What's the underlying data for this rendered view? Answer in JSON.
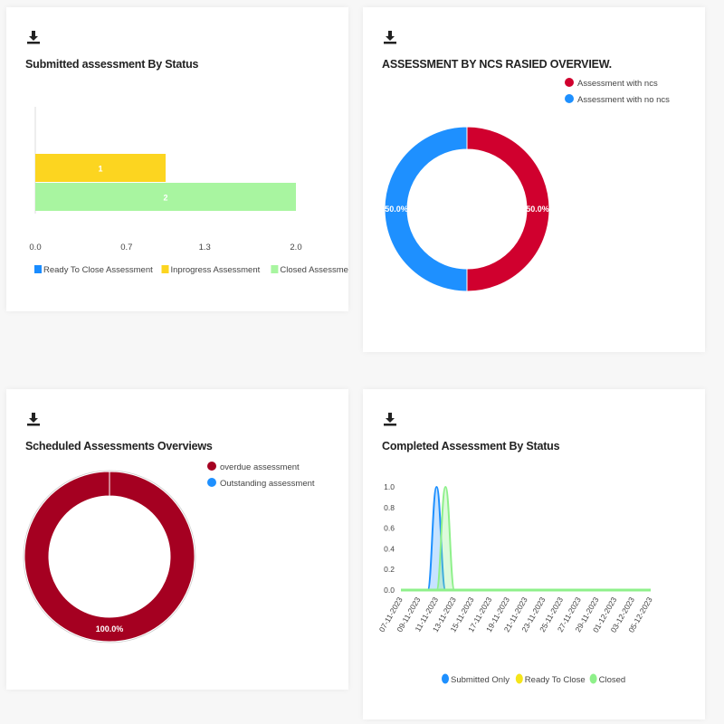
{
  "icons": {
    "download": "download-icon"
  },
  "cards": {
    "submitted": {
      "title": "Submitted assessment By Status"
    },
    "ncs": {
      "title": "ASSESSMENT BY NCS RASIED OVERVIEW."
    },
    "scheduled": {
      "title": "Scheduled Assessments Overviews"
    },
    "completed": {
      "title": "Completed Assessment By Status"
    }
  },
  "chart_data": [
    {
      "type": "bar",
      "orientation": "horizontal",
      "title": "Submitted assessment By Status",
      "series": [
        {
          "name": "Ready To Close Assessment",
          "color": "#1a8cff",
          "value": 0
        },
        {
          "name": "Inprogress Assessment",
          "color": "#fcd520",
          "value": 1
        },
        {
          "name": "Closed Assessment",
          "color": "#a8f5a0",
          "value": 2
        }
      ],
      "x_ticks": [
        "0.0",
        "0.7",
        "1.3",
        "2.0"
      ],
      "xlim": [
        0,
        2
      ],
      "legend": "bottom"
    },
    {
      "type": "pie",
      "variant": "donut",
      "title": "ASSESSMENT BY NCS RASIED OVERVIEW.",
      "slices": [
        {
          "name": "Assessment with ncs",
          "value": 50.0,
          "label": "50.0%",
          "color": "#d0002e"
        },
        {
          "name": "Assessment with no ncs",
          "value": 50.0,
          "label": "50.0%",
          "color": "#1e90ff"
        }
      ],
      "legend": "top-right"
    },
    {
      "type": "pie",
      "variant": "donut",
      "title": "Scheduled Assessments Overviews",
      "slices": [
        {
          "name": "overdue assessment",
          "value": 100.0,
          "label": "100.0%",
          "color": "#a50021"
        },
        {
          "name": "Outstanding assessment",
          "value": 0,
          "label": "",
          "color": "#1e90ff"
        }
      ],
      "legend": "top-right"
    },
    {
      "type": "area",
      "title": "Completed Assessment By Status",
      "x": [
        "07-11-2023",
        "09-11-2023",
        "11-11-2023",
        "13-11-2023",
        "15-11-2023",
        "17-11-2023",
        "19-11-2023",
        "21-11-2023",
        "23-11-2023",
        "25-11-2023",
        "27-11-2023",
        "29-11-2023",
        "01-12-2023",
        "03-12-2023",
        "05-12-2023"
      ],
      "y_ticks": [
        "1.0",
        "0.8",
        "0.6",
        "0.4",
        "0.2",
        "0.0"
      ],
      "ylim": [
        0,
        1
      ],
      "series": [
        {
          "name": "Submitted Only",
          "color": "#1e90ff",
          "fill": "rgba(30,144,255,0.25)",
          "points": [
            [
              "10-11-2023",
              0
            ],
            [
              "11-11-2023",
              1
            ],
            [
              "12-11-2023",
              0
            ]
          ]
        },
        {
          "name": "Ready To Close",
          "color": "#f5e51a",
          "fill": "rgba(245,229,26,0.3)",
          "points": [
            [
              "07-11-2023",
              0
            ],
            [
              "05-12-2023",
              0
            ]
          ]
        },
        {
          "name": "Closed",
          "color": "#8ef08a",
          "fill": "rgba(142,240,138,0.3)",
          "points": [
            [
              "11-11-2023",
              0
            ],
            [
              "12-11-2023",
              1
            ],
            [
              "13-11-2023",
              0
            ]
          ]
        }
      ],
      "legend": "bottom"
    }
  ]
}
